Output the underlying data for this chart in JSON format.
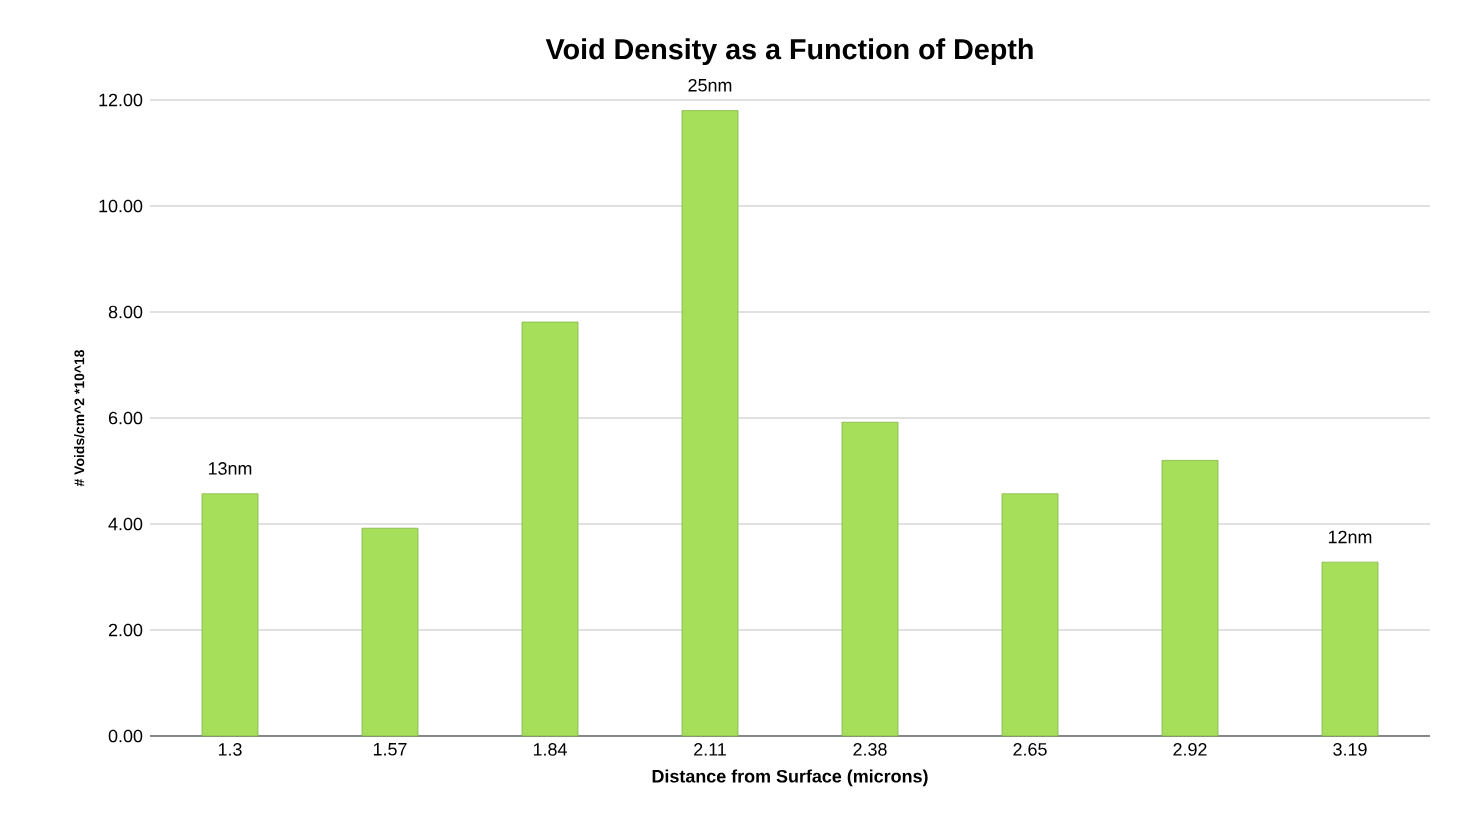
{
  "chart_data": {
    "type": "bar",
    "title": "Void Density as a Function of Depth",
    "xlabel": "Distance from Surface (microns)",
    "ylabel": "# Voids/cm^2 *10^18",
    "categories": [
      "1.3",
      "1.57",
      "1.84",
      "2.11",
      "2.38",
      "2.65",
      "2.92",
      "3.19"
    ],
    "values": [
      4.57,
      3.92,
      7.81,
      11.8,
      5.92,
      4.57,
      5.2,
      3.28
    ],
    "color": "#a6e05a",
    "ylim": [
      0,
      12
    ],
    "yticks": [
      {
        "value": 0,
        "label": "0.00"
      },
      {
        "value": 2,
        "label": "2.00"
      },
      {
        "value": 4,
        "label": "4.00"
      },
      {
        "value": 6,
        "label": "6.00"
      },
      {
        "value": 8,
        "label": "8.00"
      },
      {
        "value": 10,
        "label": "10.00"
      },
      {
        "value": 12,
        "label": "12.00"
      }
    ],
    "grid": "y",
    "annotations": [
      {
        "text": "13nm",
        "x": "1.3",
        "y": 4.57
      },
      {
        "text": "25nm",
        "x": "2.11",
        "y": 11.8
      },
      {
        "text": "12nm",
        "x": "3.19",
        "y": 3.28
      }
    ]
  }
}
